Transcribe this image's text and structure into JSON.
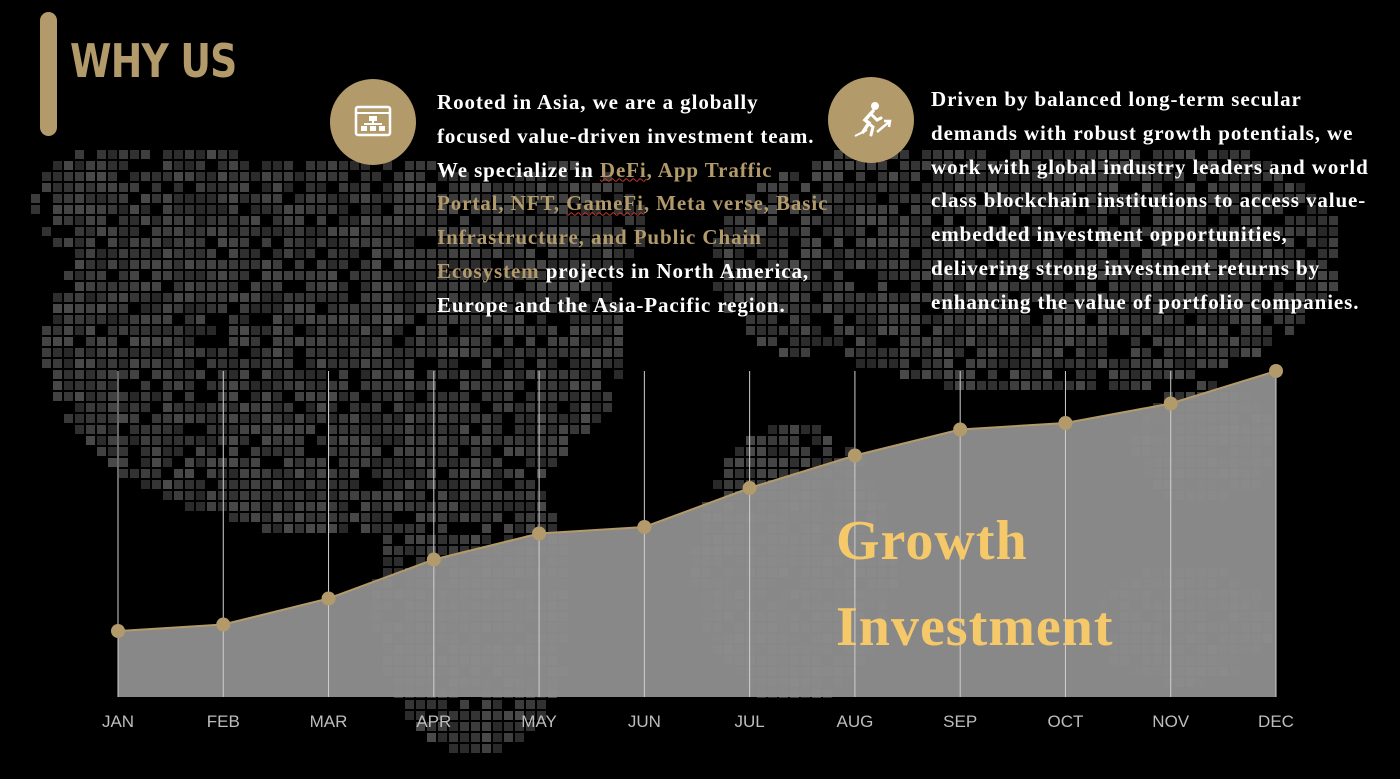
{
  "header": {
    "title": "WHY US"
  },
  "left_card": {
    "icon": "sitemap-window-icon",
    "text_a": "Rooted in Asia, we are a globally focused value-driven investment team. We specialize in ",
    "hl_defi": "DeFi",
    "hl_b": ", App Traffic Portal, NFT, ",
    "hl_gamefi": "GameFi",
    "hl_c": ", Meta verse, Basic Infrastructure, and Public Chain Ecosystem",
    "text_d": " projects in North America, Europe and the Asia-Pacific region."
  },
  "right_card": {
    "icon": "runner-rising-arrow-icon",
    "text": "Driven by balanced long-term secular demands with robust growth potentials, we work with global industry leaders and world class blockchain institutions to access value-embedded investment opportunities, delivering strong investment returns by enhancing the value of portfolio companies."
  },
  "overlay": {
    "line1": "Growth",
    "line2": "Investment"
  },
  "colors": {
    "gold": "#b39a6a",
    "highlight": "#f5c96a",
    "area": "#8e8e8e",
    "background": "#000000"
  },
  "chart_data": {
    "type": "area",
    "categories": [
      "JAN",
      "FEB",
      "MAR",
      "APR",
      "MAY",
      "JUN",
      "JUL",
      "AUG",
      "SEP",
      "OCT",
      "NOV",
      "DEC"
    ],
    "series": [
      {
        "values": [
          20,
          22,
          30,
          42,
          50,
          52,
          64,
          74,
          82,
          84,
          90,
          100
        ]
      }
    ],
    "ylim": [
      0,
      100
    ],
    "grid": "vertical"
  }
}
